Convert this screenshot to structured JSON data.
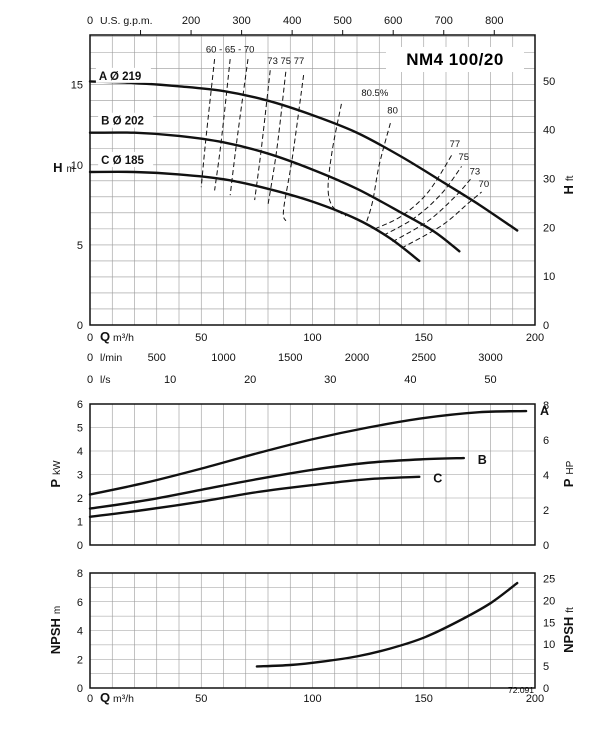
{
  "figure": {
    "model": "NM4 100/20",
    "code": "72.091"
  },
  "colors": {
    "curve": "#111111",
    "grid": "#999999",
    "axis": "#111111",
    "background": "#ffffff"
  },
  "chart_data": [
    {
      "type": "line",
      "name": "head-capacity",
      "title": "NM4 100/20",
      "xlim": [
        0,
        200
      ],
      "ylim": [
        0,
        18.1
      ],
      "grid": {
        "x_step": 10,
        "y_step": 1
      },
      "y_left": {
        "label": "H",
        "unit": "m",
        "ticks": [
          0,
          5,
          10,
          15
        ]
      },
      "y_right": {
        "label": "H",
        "unit": "ft",
        "ticks": [
          0,
          10,
          20,
          30,
          40,
          50
        ],
        "factor": 0.3048
      },
      "x_unit_rows": [
        {
          "side": "top",
          "unit": "U.S. g.p.m.",
          "factor": 0.22712,
          "zero": "0",
          "ticks": [
            200,
            300,
            400,
            500,
            600,
            700,
            800
          ],
          "marks": [
            100,
            200,
            300,
            400,
            500,
            600,
            700,
            800
          ]
        },
        {
          "side": "bottom1",
          "prefix": "Q",
          "unit": "m³/h",
          "factor": 1,
          "zero": "0",
          "ticks": [
            50,
            100,
            150,
            200
          ]
        },
        {
          "side": "bottom2",
          "unit": "l/min",
          "factor": 0.06,
          "zero": "0",
          "ticks": [
            500,
            1000,
            1500,
            2000,
            2500,
            3000
          ]
        },
        {
          "side": "bottom3",
          "unit": "l/s",
          "factor": 3.6,
          "zero": "0",
          "ticks": [
            10,
            20,
            30,
            40,
            50
          ]
        }
      ],
      "series": [
        {
          "name": "A",
          "label": "A Ø 219",
          "label_at": [
            4,
            15.55
          ],
          "points": [
            [
              0,
              15.2
            ],
            [
              20,
              15.1
            ],
            [
              40,
              14.9
            ],
            [
              60,
              14.6
            ],
            [
              80,
              14.0
            ],
            [
              100,
              13.1
            ],
            [
              120,
              12.0
            ],
            [
              140,
              10.5
            ],
            [
              160,
              8.8
            ],
            [
              175,
              7.5
            ],
            [
              192,
              5.9
            ]
          ]
        },
        {
          "name": "B",
          "label": "B Ø 202",
          "label_at": [
            5,
            12.75
          ],
          "points": [
            [
              0,
              12.0
            ],
            [
              20,
              12.0
            ],
            [
              40,
              11.8
            ],
            [
              60,
              11.4
            ],
            [
              80,
              10.7
            ],
            [
              100,
              9.7
            ],
            [
              120,
              8.5
            ],
            [
              140,
              7.0
            ],
            [
              155,
              5.8
            ],
            [
              166,
              4.6
            ]
          ]
        },
        {
          "name": "C",
          "label": "C Ø 185",
          "label_at": [
            5,
            10.3
          ],
          "points": [
            [
              0,
              9.55
            ],
            [
              20,
              9.55
            ],
            [
              40,
              9.4
            ],
            [
              60,
              9.1
            ],
            [
              80,
              8.5
            ],
            [
              100,
              7.7
            ],
            [
              120,
              6.6
            ],
            [
              135,
              5.4
            ],
            [
              148,
              4.0
            ]
          ]
        }
      ],
      "efficiency_lines": [
        {
          "value": "60",
          "points": [
            [
              56,
              16.6
            ],
            [
              52,
              11.5
            ],
            [
              50,
              8.6
            ]
          ]
        },
        {
          "value": "65",
          "points": [
            [
              63,
              16.6
            ],
            [
              59,
              11.5
            ],
            [
              56,
              8.4
            ]
          ]
        },
        {
          "value": "70",
          "points": [
            [
              71,
              16.6
            ],
            [
              66,
              11.5
            ],
            [
              63,
              8.1
            ]
          ]
        },
        {
          "value": "73",
          "points": [
            [
              81,
              15.9
            ],
            [
              77,
              11.0
            ],
            [
              74,
              7.8
            ]
          ]
        },
        {
          "value": "75",
          "points": [
            [
              88,
              15.8
            ],
            [
              84,
              11.0
            ],
            [
              80,
              7.5
            ]
          ]
        },
        {
          "value": "77",
          "points": [
            [
              96,
              15.6
            ],
            [
              91,
              10.5
            ],
            [
              87,
              7.2
            ],
            [
              88,
              6.5
            ]
          ]
        },
        {
          "value": "80-left",
          "points": [
            [
              113,
              13.8
            ],
            [
              109,
              11.0
            ],
            [
              107,
              8.6
            ],
            [
              109,
              7.4
            ],
            [
              115,
              6.8
            ]
          ]
        },
        {
          "value": "80-right",
          "points": [
            [
              135,
              12.6
            ],
            [
              130,
              10.0
            ],
            [
              127,
              7.7
            ],
            [
              124,
              6.3
            ]
          ]
        },
        {
          "value": "77-right",
          "points": [
            [
              128,
              6.0
            ],
            [
              140,
              6.8
            ],
            [
              152,
              8.3
            ],
            [
              163,
              10.7
            ]
          ]
        },
        {
          "value": "75-right",
          "points": [
            [
              132,
              5.6
            ],
            [
              146,
              6.7
            ],
            [
              158,
              8.2
            ],
            [
              167,
              9.9
            ]
          ]
        },
        {
          "value": "73-right",
          "points": [
            [
              136,
              5.2
            ],
            [
              152,
              6.5
            ],
            [
              164,
              8.0
            ],
            [
              171,
              9.1
            ]
          ]
        },
        {
          "value": "70-right",
          "points": [
            [
              140,
              4.8
            ],
            [
              158,
              6.2
            ],
            [
              170,
              7.6
            ],
            [
              176,
              8.3
            ]
          ]
        }
      ],
      "eff_labels": [
        {
          "text": "60 - 65 - 70",
          "x": 63,
          "y": 17.0
        },
        {
          "text": "73 75 77",
          "x": 88,
          "y": 16.3
        },
        {
          "text": "80.5%",
          "x": 128,
          "y": 14.3
        },
        {
          "text": "80",
          "x": 136,
          "y": 13.2
        },
        {
          "text": "77",
          "x": 164,
          "y": 11.1
        },
        {
          "text": "75",
          "x": 168,
          "y": 10.3
        },
        {
          "text": "73",
          "x": 173,
          "y": 9.4
        },
        {
          "text": "70",
          "x": 177,
          "y": 8.6
        }
      ]
    },
    {
      "type": "line",
      "name": "power-capacity",
      "xlim": [
        0,
        200
      ],
      "ylim": [
        0,
        6
      ],
      "grid": {
        "x_step": 10,
        "y_step": 1
      },
      "y_left": {
        "label": "P",
        "unit": "kW",
        "ticks": [
          0,
          1,
          2,
          3,
          4,
          5,
          6
        ]
      },
      "y_right": {
        "label": "P",
        "unit": "HP",
        "ticks": [
          0,
          2,
          4,
          6,
          8
        ],
        "factor": 0.7457
      },
      "series": [
        {
          "name": "A",
          "label": "A",
          "label_at": [
            200,
            5.7
          ],
          "points": [
            [
              0,
              2.15
            ],
            [
              25,
              2.65
            ],
            [
              50,
              3.25
            ],
            [
              75,
              3.9
            ],
            [
              100,
              4.5
            ],
            [
              125,
              5.0
            ],
            [
              150,
              5.4
            ],
            [
              175,
              5.65
            ],
            [
              196,
              5.7
            ]
          ]
        },
        {
          "name": "B",
          "label": "B",
          "label_at": [
            172,
            3.62
          ],
          "points": [
            [
              0,
              1.55
            ],
            [
              25,
              1.9
            ],
            [
              50,
              2.35
            ],
            [
              75,
              2.8
            ],
            [
              100,
              3.2
            ],
            [
              125,
              3.5
            ],
            [
              150,
              3.65
            ],
            [
              168,
              3.7
            ]
          ]
        },
        {
          "name": "C",
          "label": "C",
          "label_at": [
            152,
            2.82
          ],
          "points": [
            [
              0,
              1.2
            ],
            [
              25,
              1.5
            ],
            [
              50,
              1.85
            ],
            [
              75,
              2.25
            ],
            [
              100,
              2.55
            ],
            [
              125,
              2.8
            ],
            [
              148,
              2.9
            ]
          ]
        }
      ]
    },
    {
      "type": "line",
      "name": "npsh-capacity",
      "xlim": [
        0,
        200
      ],
      "ylim": [
        0,
        8
      ],
      "grid": {
        "x_step": 10,
        "y_step": 1
      },
      "y_left": {
        "label": "NPSH",
        "unit": "m",
        "ticks": [
          0,
          2,
          4,
          6,
          8
        ]
      },
      "y_right": {
        "label": "NPSH",
        "unit": "ft",
        "ticks": [
          0,
          5,
          10,
          15,
          20,
          25
        ],
        "factor": 0.3048
      },
      "x_unit_rows": [
        {
          "side": "bottom1",
          "prefix": "Q",
          "unit": "m³/h",
          "factor": 1,
          "zero": "0",
          "ticks": [
            50,
            100,
            150,
            200
          ]
        }
      ],
      "series": [
        {
          "name": "NPSH",
          "points": [
            [
              75,
              1.5
            ],
            [
              90,
              1.6
            ],
            [
              105,
              1.85
            ],
            [
              120,
              2.2
            ],
            [
              135,
              2.75
            ],
            [
              150,
              3.5
            ],
            [
              165,
              4.6
            ],
            [
              180,
              5.9
            ],
            [
              192,
              7.3
            ]
          ]
        }
      ],
      "note": "72.091"
    }
  ]
}
